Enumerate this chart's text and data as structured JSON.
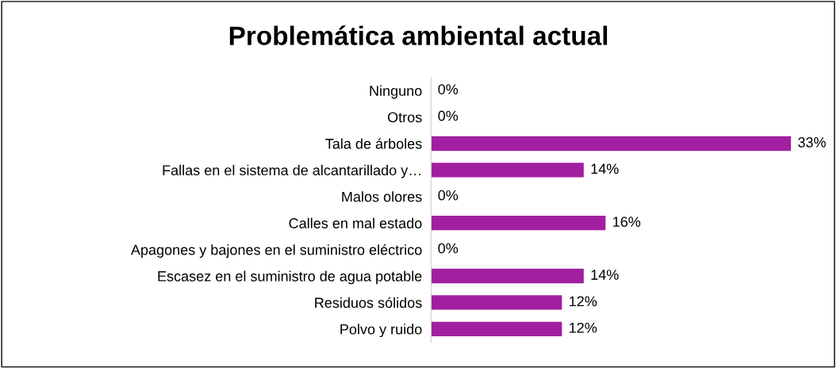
{
  "chart_data": {
    "type": "bar",
    "orientation": "horizontal",
    "title": "Problemática ambiental actual",
    "categories": [
      "Ninguno",
      "Otros",
      "Tala de árboles",
      "Fallas en el sistema de alcantarillado y…",
      "Malos olores",
      "Calles en mal estado",
      "Apagones y bajones en el suministro eléctrico",
      "Escasez en el suministro de agua potable",
      "Residuos sólidos",
      "Polvo y ruido"
    ],
    "values": [
      0,
      0,
      33,
      14,
      0,
      16,
      0,
      14,
      12,
      12
    ],
    "value_labels": [
      "0%",
      "0%",
      "33%",
      "14%",
      "0%",
      "16%",
      "0%",
      "14%",
      "12%",
      "12%"
    ],
    "color": "#a21fa2",
    "grid": false,
    "legend": false,
    "tick_labels": "y"
  }
}
